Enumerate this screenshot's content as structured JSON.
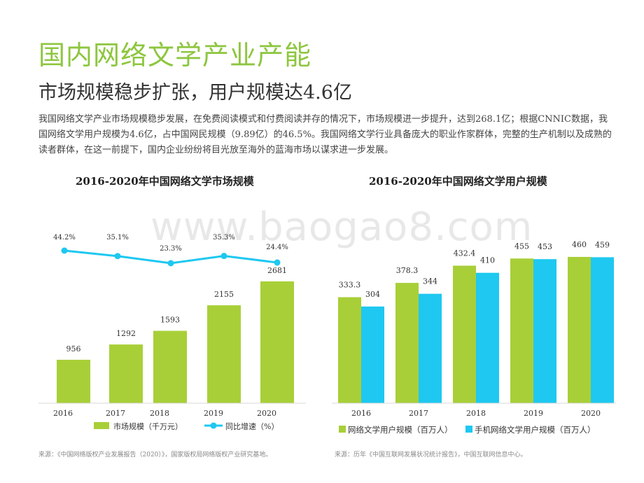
{
  "title": "国内网络文学产业产能",
  "subtitle": "市场规模稳步扩张，用户规模达4.6亿",
  "paragraph": "我国网络文学产业市场规模稳步发展，在免费阅读模式和付费阅读并存的情况下，市场规模进一步提升，达到268.1亿；根据CNNIC数据，我国网络文学用户规模为4.6亿，占中国网民规模（9.89亿）的46.5%。我国网络文学行业具备庞大的职业作家群体，完整的生产机制以及成熟的读者群体，在这一前提下，国内企业纷纷将目光放至海外的蓝海市场以谋求进一步发展。",
  "watermark": "www.baogao8.com",
  "left_source": "来源：《中国网络版权产业发展报告（2020）》，国家版权局网络版权产业研究基地。",
  "right_source": "来源：历年《中国互联网发展状况统计报告》，中国互联网信息中心。",
  "colors": {
    "green": "#a8cf38",
    "cyan": "#1ec8f0",
    "title_green": "#8dc63f"
  },
  "chart_data": [
    {
      "type": "bar",
      "title": "2016-2020年中国网络文学市场规模",
      "categories": [
        "2016",
        "2017",
        "2018",
        "2019",
        "2020"
      ],
      "series": [
        {
          "name": "市场规模（千万元）",
          "type": "bar",
          "values": [
            956,
            1292,
            1593,
            2155,
            2681
          ],
          "labels": [
            "956",
            "1292",
            "1593",
            "2155",
            "2681"
          ]
        },
        {
          "name": "同比增速（%）",
          "type": "line",
          "values": [
            44.2,
            35.1,
            23.3,
            35.3,
            24.4
          ],
          "labels": [
            "44.2%",
            "35.1%",
            "23.3%",
            "35.3%",
            "24.4%"
          ]
        }
      ],
      "legend": "bottom",
      "grid": false
    },
    {
      "type": "bar",
      "title": "2016-2020年中国网络文学用户规模",
      "categories": [
        "2016",
        "2017",
        "2018",
        "2019",
        "2020"
      ],
      "series": [
        {
          "name": "网络文学用户规模（百万人）",
          "values": [
            333.3,
            378.3,
            432.4,
            455,
            460
          ],
          "labels": [
            "333.3",
            "378.3",
            "432.4",
            "455",
            "460"
          ]
        },
        {
          "name": "手机网络文学用户规模（百万人）",
          "values": [
            304,
            344,
            410,
            453,
            459
          ],
          "labels": [
            "304",
            "344",
            "410",
            "453",
            "459"
          ]
        }
      ],
      "legend": "bottom",
      "grid": false
    }
  ]
}
